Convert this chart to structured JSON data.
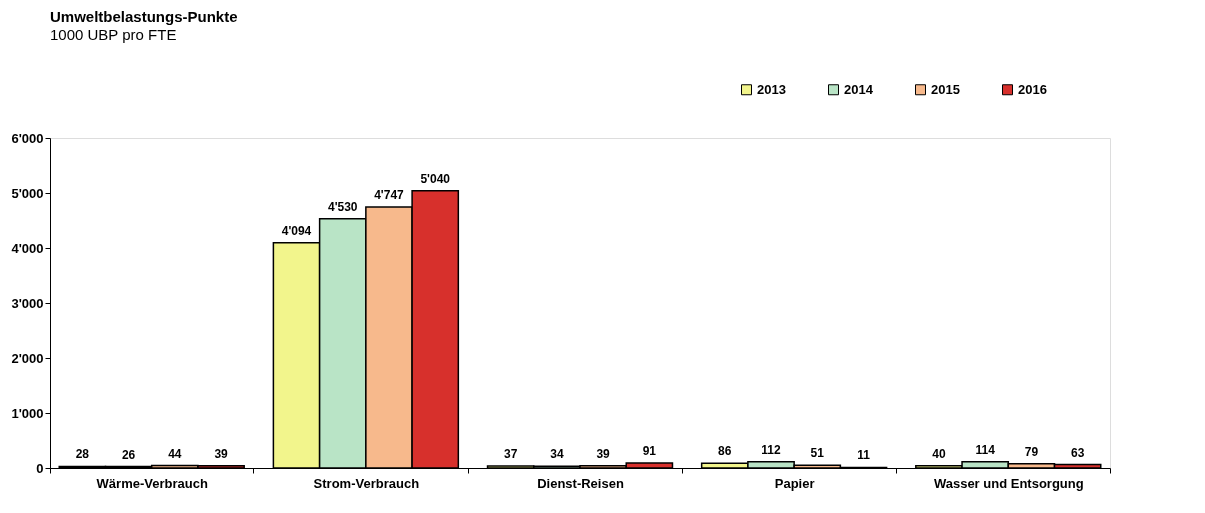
{
  "chart_data": {
    "type": "bar",
    "title": "Umweltbelastungs-Punkte",
    "subtitle": "1000 UBP pro FTE",
    "categories": [
      "Wärme-Verbrauch",
      "Strom-Verbrauch",
      "Dienst-Reisen",
      "Papier",
      "Wasser und Entsorgung"
    ],
    "series": [
      {
        "name": "2013",
        "color": "#f2f58c",
        "values": [
          28,
          4094,
          37,
          86,
          40
        ],
        "value_labels": [
          "28",
          "4'094",
          "37",
          "86",
          "40"
        ]
      },
      {
        "name": "2014",
        "color": "#b9e4c6",
        "values": [
          26,
          4530,
          34,
          112,
          114
        ],
        "value_labels": [
          "26",
          "4'530",
          "34",
          "112",
          "114"
        ]
      },
      {
        "name": "2015",
        "color": "#f7b98c",
        "values": [
          44,
          4747,
          39,
          51,
          79
        ],
        "value_labels": [
          "44",
          "4'747",
          "39",
          "51",
          "79"
        ]
      },
      {
        "name": "2016",
        "color": "#d7302c",
        "values": [
          39,
          5040,
          91,
          11,
          63
        ],
        "value_labels": [
          "39",
          "5'040",
          "91",
          "11",
          "63"
        ]
      }
    ],
    "ylim": [
      0,
      6000
    ],
    "yticks": [
      0,
      {
        "value": 1000,
        "label": "1'000"
      },
      {
        "value": 2000,
        "label": "2'000"
      },
      {
        "value": 3000,
        "label": "3'000"
      },
      {
        "value": 4000,
        "label": "4'000"
      },
      {
        "value": 5000,
        "label": "5'000"
      },
      {
        "value": 6000,
        "label": "6'000"
      }
    ],
    "legend": "top right",
    "grid": false
  }
}
